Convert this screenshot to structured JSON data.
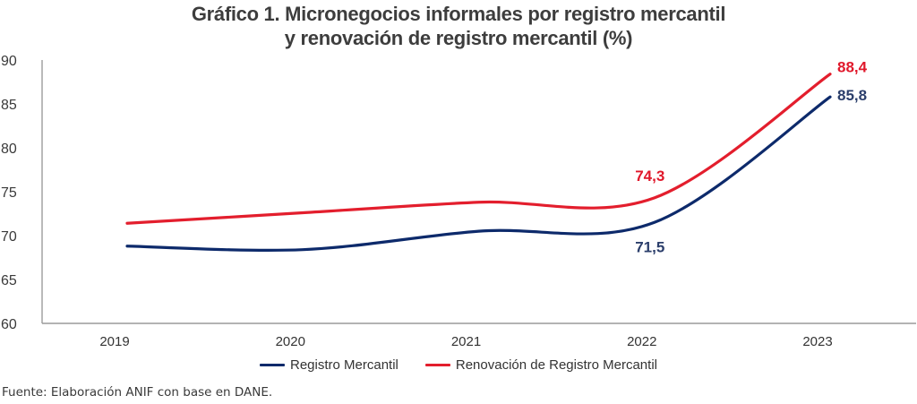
{
  "chart_data": {
    "type": "line",
    "title": [
      "Gráfico 1. Micronegocios informales por registro mercantil",
      "y renovación de registro mercantil (%)"
    ],
    "xlabel": "",
    "ylabel": "",
    "categories": [
      "2019",
      "2020",
      "2021",
      "2022",
      "2023"
    ],
    "ylim": [
      60,
      90
    ],
    "yticks": [
      "60",
      "65",
      "70",
      "75",
      "80",
      "85",
      "90"
    ],
    "grid": false,
    "smooth": true,
    "legend_position": "bottom",
    "series": [
      {
        "name": "Registro Mercantil",
        "color": "#0D2A6B",
        "label_color": "#2B3E6B",
        "values": [
          68.8,
          68.4,
          70.5,
          71.5,
          85.8
        ],
        "data_labels": [
          null,
          null,
          null,
          "71,5",
          "85,8"
        ]
      },
      {
        "name": "Renovación de Registro Mercantil",
        "color": "#E31E2D",
        "label_color": "#E0182B",
        "values": [
          71.4,
          72.6,
          73.8,
          74.3,
          88.4
        ],
        "data_labels": [
          null,
          null,
          null,
          "74,3",
          "88,4"
        ]
      }
    ]
  },
  "footer": {
    "source": "Fuente: Elaboración ANIF con base en DANE."
  }
}
